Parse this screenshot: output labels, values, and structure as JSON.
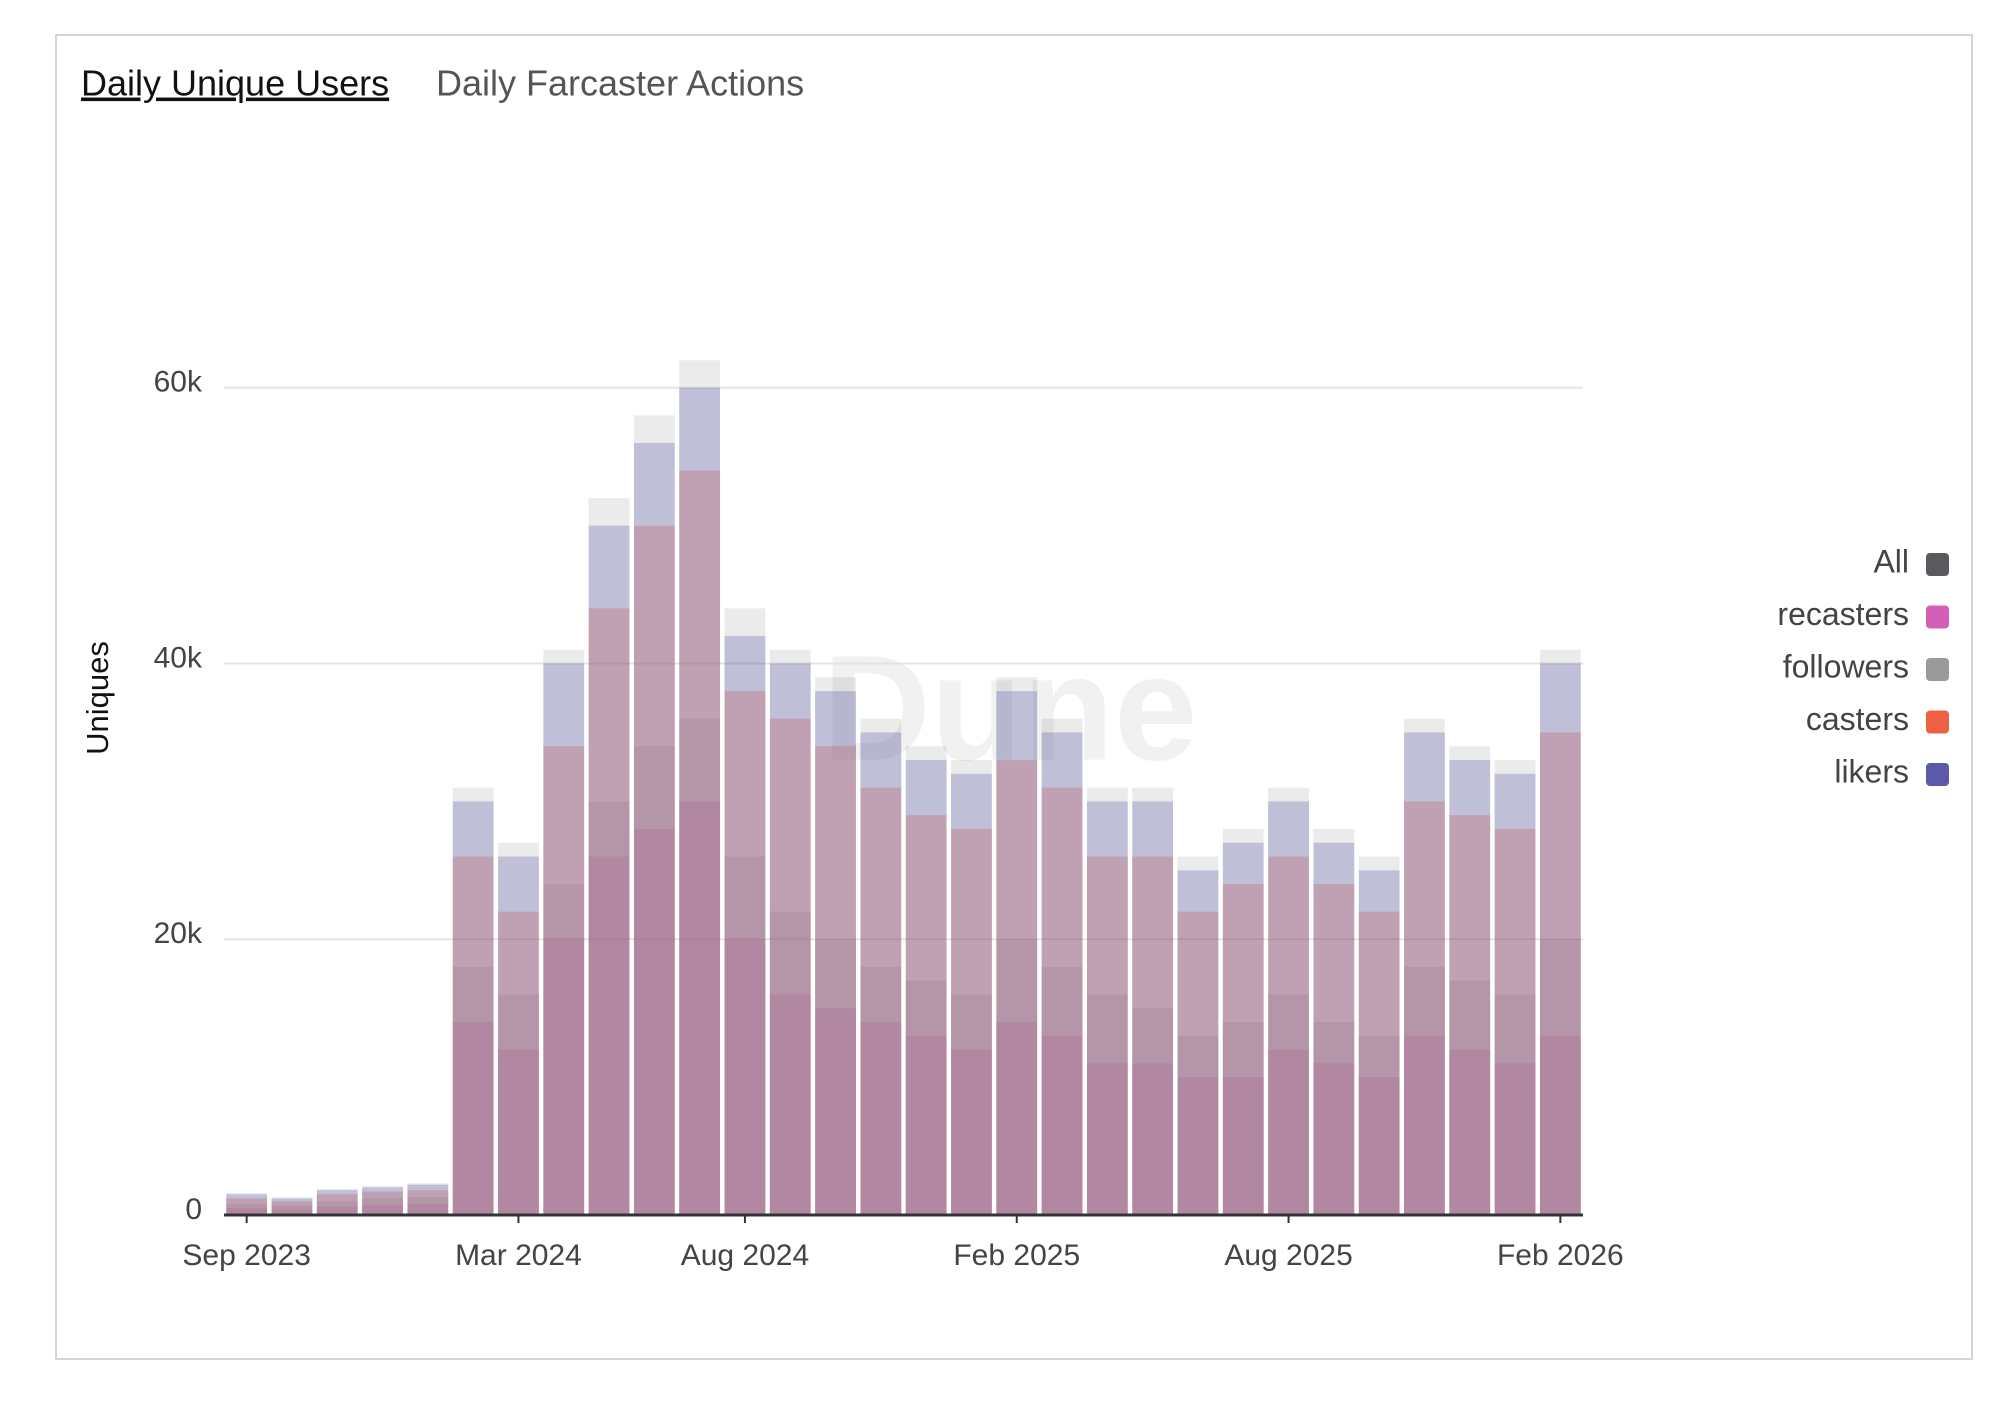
{
  "tabs": [
    "Daily Unique Users",
    "Daily Farcaster Actions"
  ],
  "watermark": "Dune",
  "chart_data": {
    "type": "bar",
    "ylabel": "Uniques",
    "x": [
      "Sep 2023",
      "Oct 2023",
      "Nov 2023",
      "Dec 2023",
      "Jan 2024",
      "Feb 2024",
      "Mar 2024",
      "Apr 2024",
      "May 2024",
      "Jun 2024",
      "Jul 2024",
      "Aug 2024",
      "Sep 2024",
      "Oct 2024",
      "Nov 2024",
      "Dec 2024",
      "Jan 2025",
      "Feb 2025",
      "Mar 2025",
      "Apr 2025",
      "May 2025",
      "Jun 2025",
      "Jul 2025",
      "Aug 2025",
      "Sep 2025",
      "Oct 2025",
      "Nov 2025",
      "Dec 2025",
      "Jan 2026",
      "Feb 2026"
    ],
    "xticks": [
      "Sep 2023",
      "Mar 2024",
      "Aug 2024",
      "Feb 2025",
      "Aug 2025",
      "Feb 2026"
    ],
    "ylim": [
      0,
      75000
    ],
    "yticks": [
      {
        "value": 0,
        "label": "0"
      },
      {
        "value": 20000,
        "label": "20k"
      },
      {
        "value": 40000,
        "label": "40k"
      },
      {
        "value": 60000,
        "label": "60k"
      }
    ],
    "grid": true,
    "legend": "right",
    "series": [
      {
        "name": "All",
        "color": "#5a5a5e",
        "values": [
          1600,
          1300,
          1900,
          2100,
          2300,
          31000,
          27000,
          41000,
          52000,
          58000,
          62000,
          44000,
          41000,
          39000,
          36000,
          34000,
          33000,
          39000,
          36000,
          31000,
          31000,
          26000,
          28000,
          31000,
          28000,
          26000,
          36000,
          34000,
          33000,
          41000
        ]
      },
      {
        "name": "recasters",
        "color": "#d35fb7",
        "values": [
          500,
          400,
          600,
          700,
          800,
          14000,
          12000,
          20000,
          26000,
          28000,
          30000,
          20000,
          16000,
          15000,
          14000,
          13000,
          12000,
          14000,
          13000,
          11000,
          11000,
          10000,
          10000,
          12000,
          11000,
          10000,
          13000,
          12000,
          11000,
          13000
        ]
      },
      {
        "name": "followers",
        "color": "#9a9a9a",
        "values": [
          800,
          700,
          1000,
          1200,
          1300,
          18000,
          16000,
          24000,
          30000,
          34000,
          36000,
          26000,
          22000,
          20000,
          18000,
          17000,
          16000,
          20000,
          18000,
          16000,
          15000,
          13000,
          14000,
          16000,
          14000,
          13000,
          18000,
          17000,
          16000,
          20000
        ]
      },
      {
        "name": "casters",
        "color": "#ee6044",
        "values": [
          1200,
          1000,
          1500,
          1700,
          1800,
          26000,
          22000,
          34000,
          44000,
          50000,
          54000,
          38000,
          36000,
          34000,
          31000,
          29000,
          28000,
          33000,
          31000,
          26000,
          26000,
          22000,
          24000,
          26000,
          24000,
          22000,
          30000,
          29000,
          28000,
          35000
        ]
      },
      {
        "name": "likers",
        "color": "#5a5aa8",
        "values": [
          1500,
          1200,
          1800,
          2000,
          2200,
          30000,
          26000,
          40000,
          50000,
          56000,
          60000,
          42000,
          40000,
          38000,
          35000,
          33000,
          32000,
          38000,
          35000,
          30000,
          30000,
          25000,
          27000,
          30000,
          27000,
          25000,
          35000,
          33000,
          32000,
          40000
        ]
      }
    ]
  }
}
